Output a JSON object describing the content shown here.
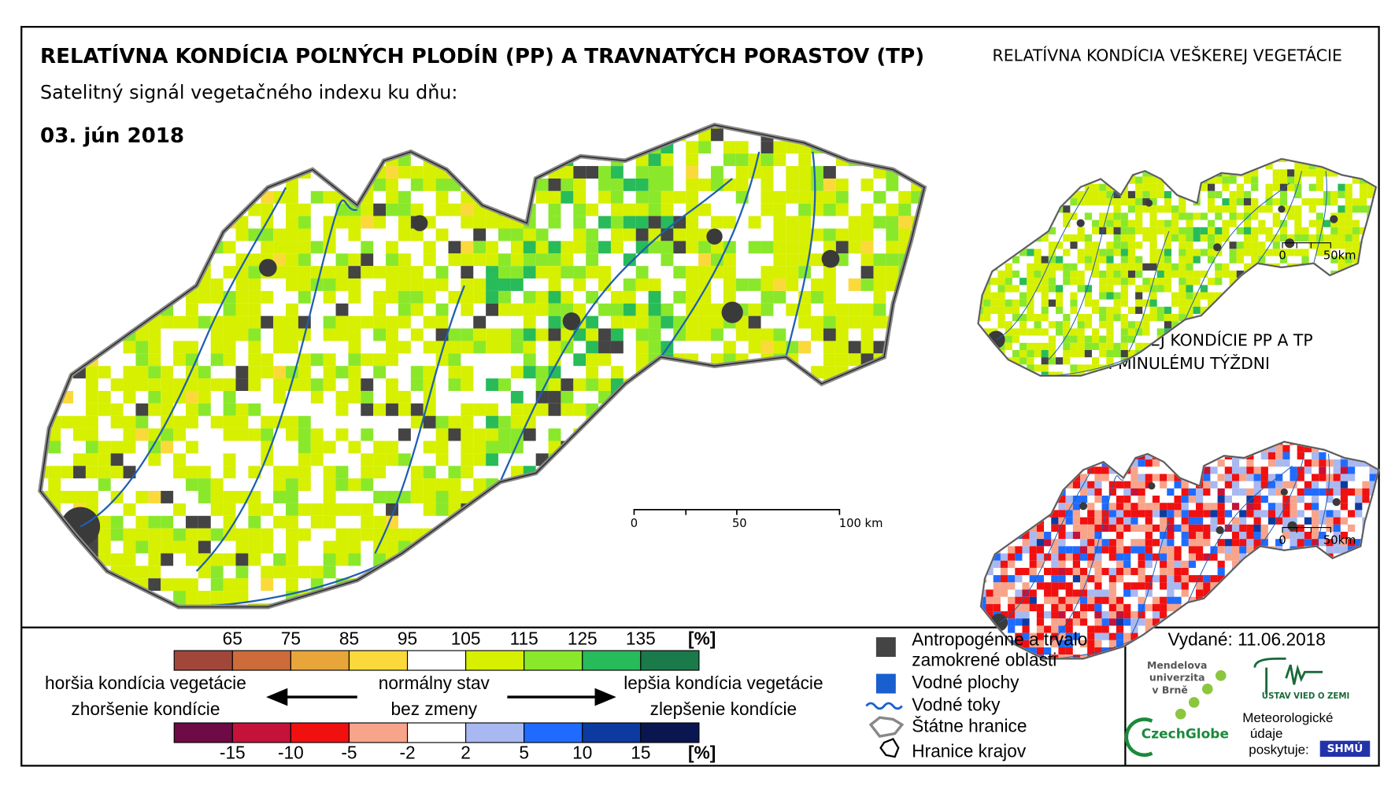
{
  "header": {
    "title": "RELATÍVNA KONDÍCIA POĽNÝCH PLODÍN (PP) A TRAVNATÝCH PORASTOV (TP)",
    "subtitle": "Satelitný signál vegetačného indexu ku dňu:",
    "date": "03. jún 2018"
  },
  "main_map": {
    "scale_labels": [
      "0",
      "50",
      "100 km"
    ]
  },
  "inset_maps": [
    {
      "title_lines": [
        "RELATÍVNA KONDÍCIA VEŠKEREJ VEGETÁCIE"
      ],
      "scale_labels": [
        "0",
        "50km"
      ]
    },
    {
      "title_lines": [
        "ZMENA RELATÍVNEJ KONDÍCIE PP A TP",
        "OPROTI MINULÉMU TÝŽDNI"
      ],
      "scale_labels": [
        "0",
        "50km"
      ]
    }
  ],
  "legend": {
    "condition_scale": {
      "ticks": [
        65,
        75,
        85,
        95,
        105,
        115,
        125,
        135
      ],
      "unit": "[%]",
      "colors": [
        "#a0473a",
        "#cd6b3b",
        "#e8a53a",
        "#fbd93a",
        "#ffffff",
        "#d6f000",
        "#8ae82b",
        "#28bb5a",
        "#1a7a4a"
      ]
    },
    "change_scale": {
      "ticks": [
        -15,
        -10,
        -5,
        -2,
        2,
        5,
        10,
        15
      ],
      "unit": "[%]",
      "colors": [
        "#6e0a45",
        "#c4123a",
        "#f01010",
        "#f8a48a",
        "#ffffff",
        "#a8b8f0",
        "#1f6bff",
        "#0c3aa0",
        "#0a1650"
      ]
    },
    "left_labels": [
      "horšia kondícia vegetácie",
      "zhoršenie kondície"
    ],
    "center_labels": [
      "normálny stav",
      "bez zmeny"
    ],
    "right_labels": [
      "lepšia kondícia vegetácie",
      "zlepšenie kondície"
    ],
    "items": [
      {
        "label_lines": [
          "Antropogénne a trvalo",
          "zamokrené oblasti"
        ]
      },
      {
        "label_lines": [
          "Vodné plochy"
        ]
      },
      {
        "label_lines": [
          "Vodné toky"
        ]
      },
      {
        "label_lines": [
          "Štátne hranice"
        ]
      },
      {
        "label_lines": [
          "Hranice krajov"
        ]
      }
    ]
  },
  "footer": {
    "issued": "Vydané: 11.06.2018",
    "logos": {
      "mendel": [
        "Mendelova",
        "univerzita",
        "v Brně"
      ],
      "czechglobe": "CzechGlobe",
      "ustav": "ÚSTAV VIED O ZEMI",
      "meteo": [
        "Meteorologické",
        "údaje",
        "poskytuje:"
      ],
      "shmu": "SHMÚ"
    }
  }
}
